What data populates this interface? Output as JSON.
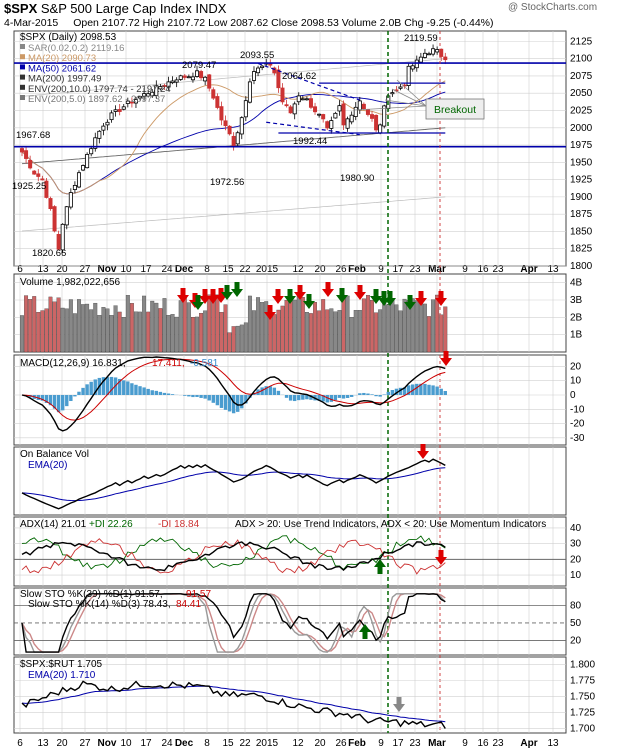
{
  "header": {
    "symbol": "$SPX",
    "name": "S&P 500 Large Cap Index",
    "exchange": "INDX",
    "watermark": "@ StockCharts.com",
    "date": "4-Mar-2015",
    "quote": "Open 2107.72  High 2107.72  Low 2087.62  Close 2098.53  Volume 2.0B  Chg -9.25 (-0.44%)"
  },
  "colors": {
    "up": "#000000",
    "down": "#cc3333",
    "blue": "#0000aa",
    "green": "#006600",
    "red_arrow": "#dd0000",
    "grid": "#d0d0d0",
    "vol_up": "#888888",
    "vol_down": "#cc6666",
    "ma20": "#cc9966",
    "ma200": "#666666",
    "hist": "#4a9ccf"
  },
  "chart_data": [
    {
      "type": "candlestick",
      "title": "$SPX (Daily) 2098.53",
      "legend": [
        "SAR(0.02,0.2) 2119.16",
        "MA(20) 2090.73",
        "MA(50) 2061.62",
        "MA(200) 1997.49",
        "ENV(200,10.0) 1797.74 - 2197.24",
        "ENV(200,5.0) 1897.62 - 2097.37"
      ],
      "ylim": [
        1800,
        2140
      ],
      "yticks": [
        "2125",
        "2100",
        "2075",
        "2050",
        "2025",
        "2000",
        "1975",
        "1950",
        "1925",
        "1900",
        "1875",
        "1850",
        "1825",
        "1800"
      ],
      "annotations": [
        "1967.68",
        "1925.25",
        "1820.66",
        "2079.47",
        "2093.55",
        "1972.56",
        "2064.62",
        "1992.44",
        "1980.90",
        "2119.59",
        "Breakout"
      ],
      "support_levels": [
        2093.55,
        1972.56,
        2064.62,
        1992.44
      ],
      "close_start": 1965,
      "close_end": 2098.53
    },
    {
      "type": "bar",
      "title": "Volume 1,982,022,656",
      "yticks": [
        "4B",
        "3B",
        "2B",
        "1B"
      ],
      "ylim": [
        0,
        4.5
      ]
    },
    {
      "type": "line",
      "title": "MACD(12,26,9) 16.831, 17.411, -0.581",
      "legend": [
        "MACD(12,26,9) 16.831,",
        "17.411,",
        "-0.581"
      ],
      "yticks": [
        "20",
        "10",
        "0",
        "-10",
        "-20",
        "-30"
      ],
      "ylim": [
        -35,
        28
      ]
    },
    {
      "type": "line",
      "title": "On Balance Vol",
      "legend": [
        "On Balance Vol",
        "EMA(20)"
      ]
    },
    {
      "type": "line",
      "title": "ADX(14) 21.01",
      "legend": [
        "ADX(14) 21.01",
        "+DI 22.26",
        "-DI 18.84",
        "ADX > 20: Use Trend Indicators, ADX < 20: Use Momentum Indicators"
      ],
      "yticks": [
        "40",
        "30",
        "20",
        "10"
      ],
      "ylim": [
        3,
        47
      ]
    },
    {
      "type": "line",
      "title": "Slow STO",
      "legend": [
        "Slow STO %K(39) %D(1) 91.57,",
        "91.57",
        "Slow STO %K(14) %D(3) 78.43,",
        "84.41"
      ],
      "yticks": [
        "80",
        "50",
        "20"
      ],
      "ylim": [
        -5,
        110
      ]
    },
    {
      "type": "line",
      "title": "$SPX:$RUT 1.705",
      "legend": [
        "$SPX:$RUT 1.705",
        "EMA(20) 1.710"
      ],
      "yticks": [
        "1.800",
        "1.775",
        "1.750",
        "1.725",
        "1.700"
      ],
      "ylim": [
        1.693,
        1.812
      ]
    }
  ],
  "xaxis_labels": [
    "6",
    "13",
    "20",
    "27",
    "Nov",
    "10",
    "17",
    "24",
    "Dec",
    "8",
    "15",
    "22",
    "2015",
    "12",
    "20",
    "26",
    "Feb",
    "9",
    "17",
    "23",
    "Mar",
    "9",
    "16",
    "23",
    "Apr",
    "13"
  ]
}
